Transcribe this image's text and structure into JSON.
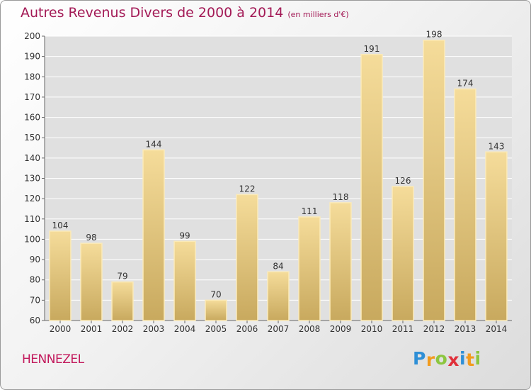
{
  "title": {
    "main": "Autres Revenus Divers de 2000 à 2014",
    "unit": "(en milliers d'€)"
  },
  "commune": "HENNEZEL",
  "logo": {
    "text": "Proxiti",
    "letters": [
      {
        "char": "P",
        "color": "#2e8fd6"
      },
      {
        "char": "r",
        "color": "#f29b1d"
      },
      {
        "char": "o",
        "color": "#8cc63f"
      },
      {
        "char": "x",
        "color": "#e0303a"
      },
      {
        "char": "i",
        "color": "#2e8fd6"
      },
      {
        "char": "t",
        "color": "#f29b1d"
      },
      {
        "char": "i",
        "color": "#8cc63f"
      }
    ]
  },
  "colors": {
    "title": "#a31a56",
    "bar_light": "#f5dc9a",
    "bar_dark": "#c8a95e",
    "grid": "#ffffff",
    "plot_bg": "#e0e0e0"
  },
  "chart_data": {
    "type": "bar",
    "title": "Autres Revenus Divers de 2000 à 2014",
    "subtitle": "(en milliers d'€)",
    "xlabel": "",
    "ylabel": "",
    "categories": [
      "2000",
      "2001",
      "2002",
      "2003",
      "2004",
      "2005",
      "2006",
      "2007",
      "2008",
      "2009",
      "2010",
      "2011",
      "2012",
      "2013",
      "2014"
    ],
    "values": [
      104,
      98,
      79,
      144,
      99,
      70,
      122,
      84,
      111,
      118,
      191,
      126,
      198,
      174,
      143
    ],
    "ylim": [
      60,
      200
    ],
    "yticks": [
      60,
      70,
      80,
      90,
      100,
      110,
      120,
      130,
      140,
      150,
      160,
      170,
      180,
      190,
      200
    ],
    "grid": true,
    "legend": "none"
  }
}
